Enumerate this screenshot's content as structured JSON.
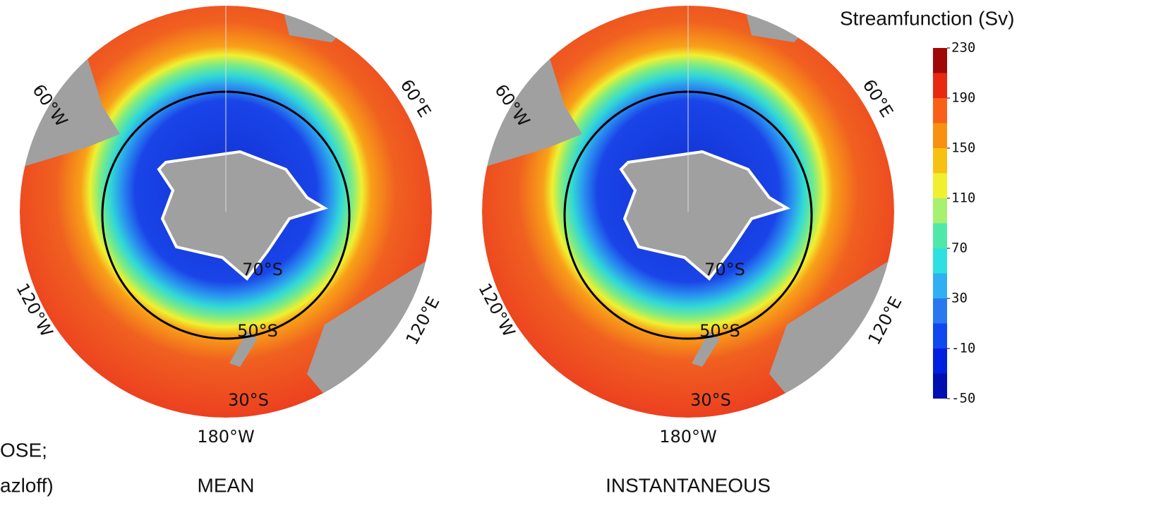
{
  "colorbar": {
    "title": "Streamfunction (Sv)",
    "levels": [
      -50,
      -30,
      -10,
      10,
      30,
      50,
      70,
      90,
      110,
      130,
      150,
      170,
      190,
      210,
      230
    ],
    "colors": [
      "#0010b0",
      "#0020e0",
      "#1048f0",
      "#2a78f0",
      "#30b0f0",
      "#30e0e0",
      "#50e8a8",
      "#a8f070",
      "#f0f030",
      "#f8c010",
      "#f89010",
      "#f86018",
      "#e82810",
      "#a00808"
    ],
    "ticks": [
      230,
      190,
      150,
      110,
      70,
      30,
      -10,
      -50
    ]
  },
  "panels": [
    {
      "title": "MEAN",
      "labels": [
        "60°W",
        "60°E",
        "120°W",
        "120°E",
        "50°S",
        "30°S",
        "70°S",
        "180°W"
      ]
    },
    {
      "title": "INSTANTANEOUS",
      "labels": [
        "60°W",
        "60°E",
        "120°W",
        "120°E",
        "50°S",
        "30°S",
        "70°S",
        "180°W"
      ]
    }
  ],
  "caption_fragments": [
    "OSE;",
    "azloff)"
  ]
}
